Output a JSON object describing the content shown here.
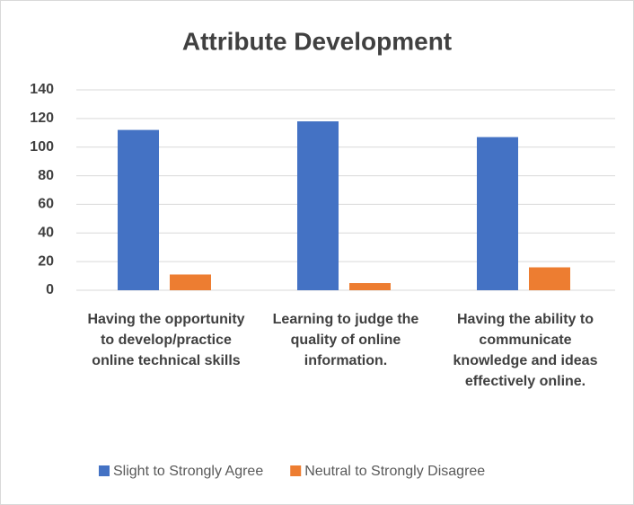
{
  "chart_data": {
    "type": "bar",
    "title": "Attribute Development",
    "categories": [
      "Having the opportunity to develop/practice online technical skills",
      "Learning to judge the quality of online information.",
      "Having the ability to communicate knowledge and ideas effectively online."
    ],
    "series": [
      {
        "name": "Slight to Strongly Agree",
        "color": "#4472c4",
        "values": [
          112,
          118,
          107
        ]
      },
      {
        "name": "Neutral to Strongly Disagree",
        "color": "#ed7d31",
        "values": [
          11,
          5,
          16
        ]
      }
    ],
    "ylim": [
      0,
      140
    ],
    "yticks": [
      0,
      20,
      40,
      60,
      80,
      100,
      120,
      140
    ],
    "grid": true,
    "legend": "bottom"
  }
}
